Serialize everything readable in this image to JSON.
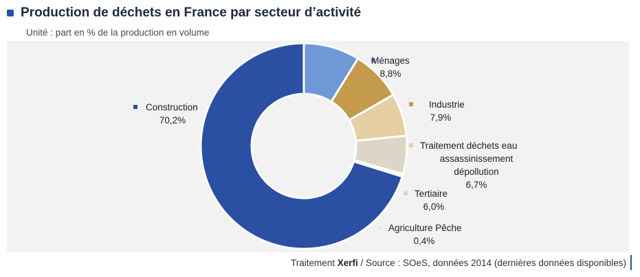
{
  "header": {
    "title": "Production de déchets en France par secteur d’activité",
    "subtitle": "Unité : part en % de la production en volume",
    "accent_color": "#2b4fa3"
  },
  "footer": {
    "source_prefix": "Traitement ",
    "source_brand": "Xerfi",
    "source_suffix": " / Source : SOeS, données 2014 (dernières données disponibles)"
  },
  "chart_data": {
    "type": "pie",
    "variant": "donut",
    "series": [
      {
        "label": "Ménages",
        "label_lines": [
          "Ménages"
        ],
        "value": 8.8,
        "value_label": "8,8%",
        "color": "#6f99d6"
      },
      {
        "label": "Industrie",
        "label_lines": [
          "Industrie"
        ],
        "value": 7.9,
        "value_label": "7,9%",
        "color": "#c49a4d"
      },
      {
        "label": "Traitement déchets eau assassinissement dépollution",
        "label_lines": [
          "Traitement déchets eau",
          "assassinissement",
          "dépollution"
        ],
        "value": 6.7,
        "value_label": "6,7%",
        "color": "#e6cfa3"
      },
      {
        "label": "Tertiaire",
        "label_lines": [
          "Tertiaire"
        ],
        "value": 6.0,
        "value_label": "6,0%",
        "color": "#ddd5c6"
      },
      {
        "label": "Agriculture Pêche",
        "label_lines": [
          "Agriculture Pêche"
        ],
        "value": 0.4,
        "value_label": "0,4%",
        "color": "#e8e8e8"
      },
      {
        "label": "Construction",
        "label_lines": [
          "Construction"
        ],
        "value": 70.2,
        "value_label": "70,2%",
        "color": "#2b4fa3"
      }
    ]
  }
}
